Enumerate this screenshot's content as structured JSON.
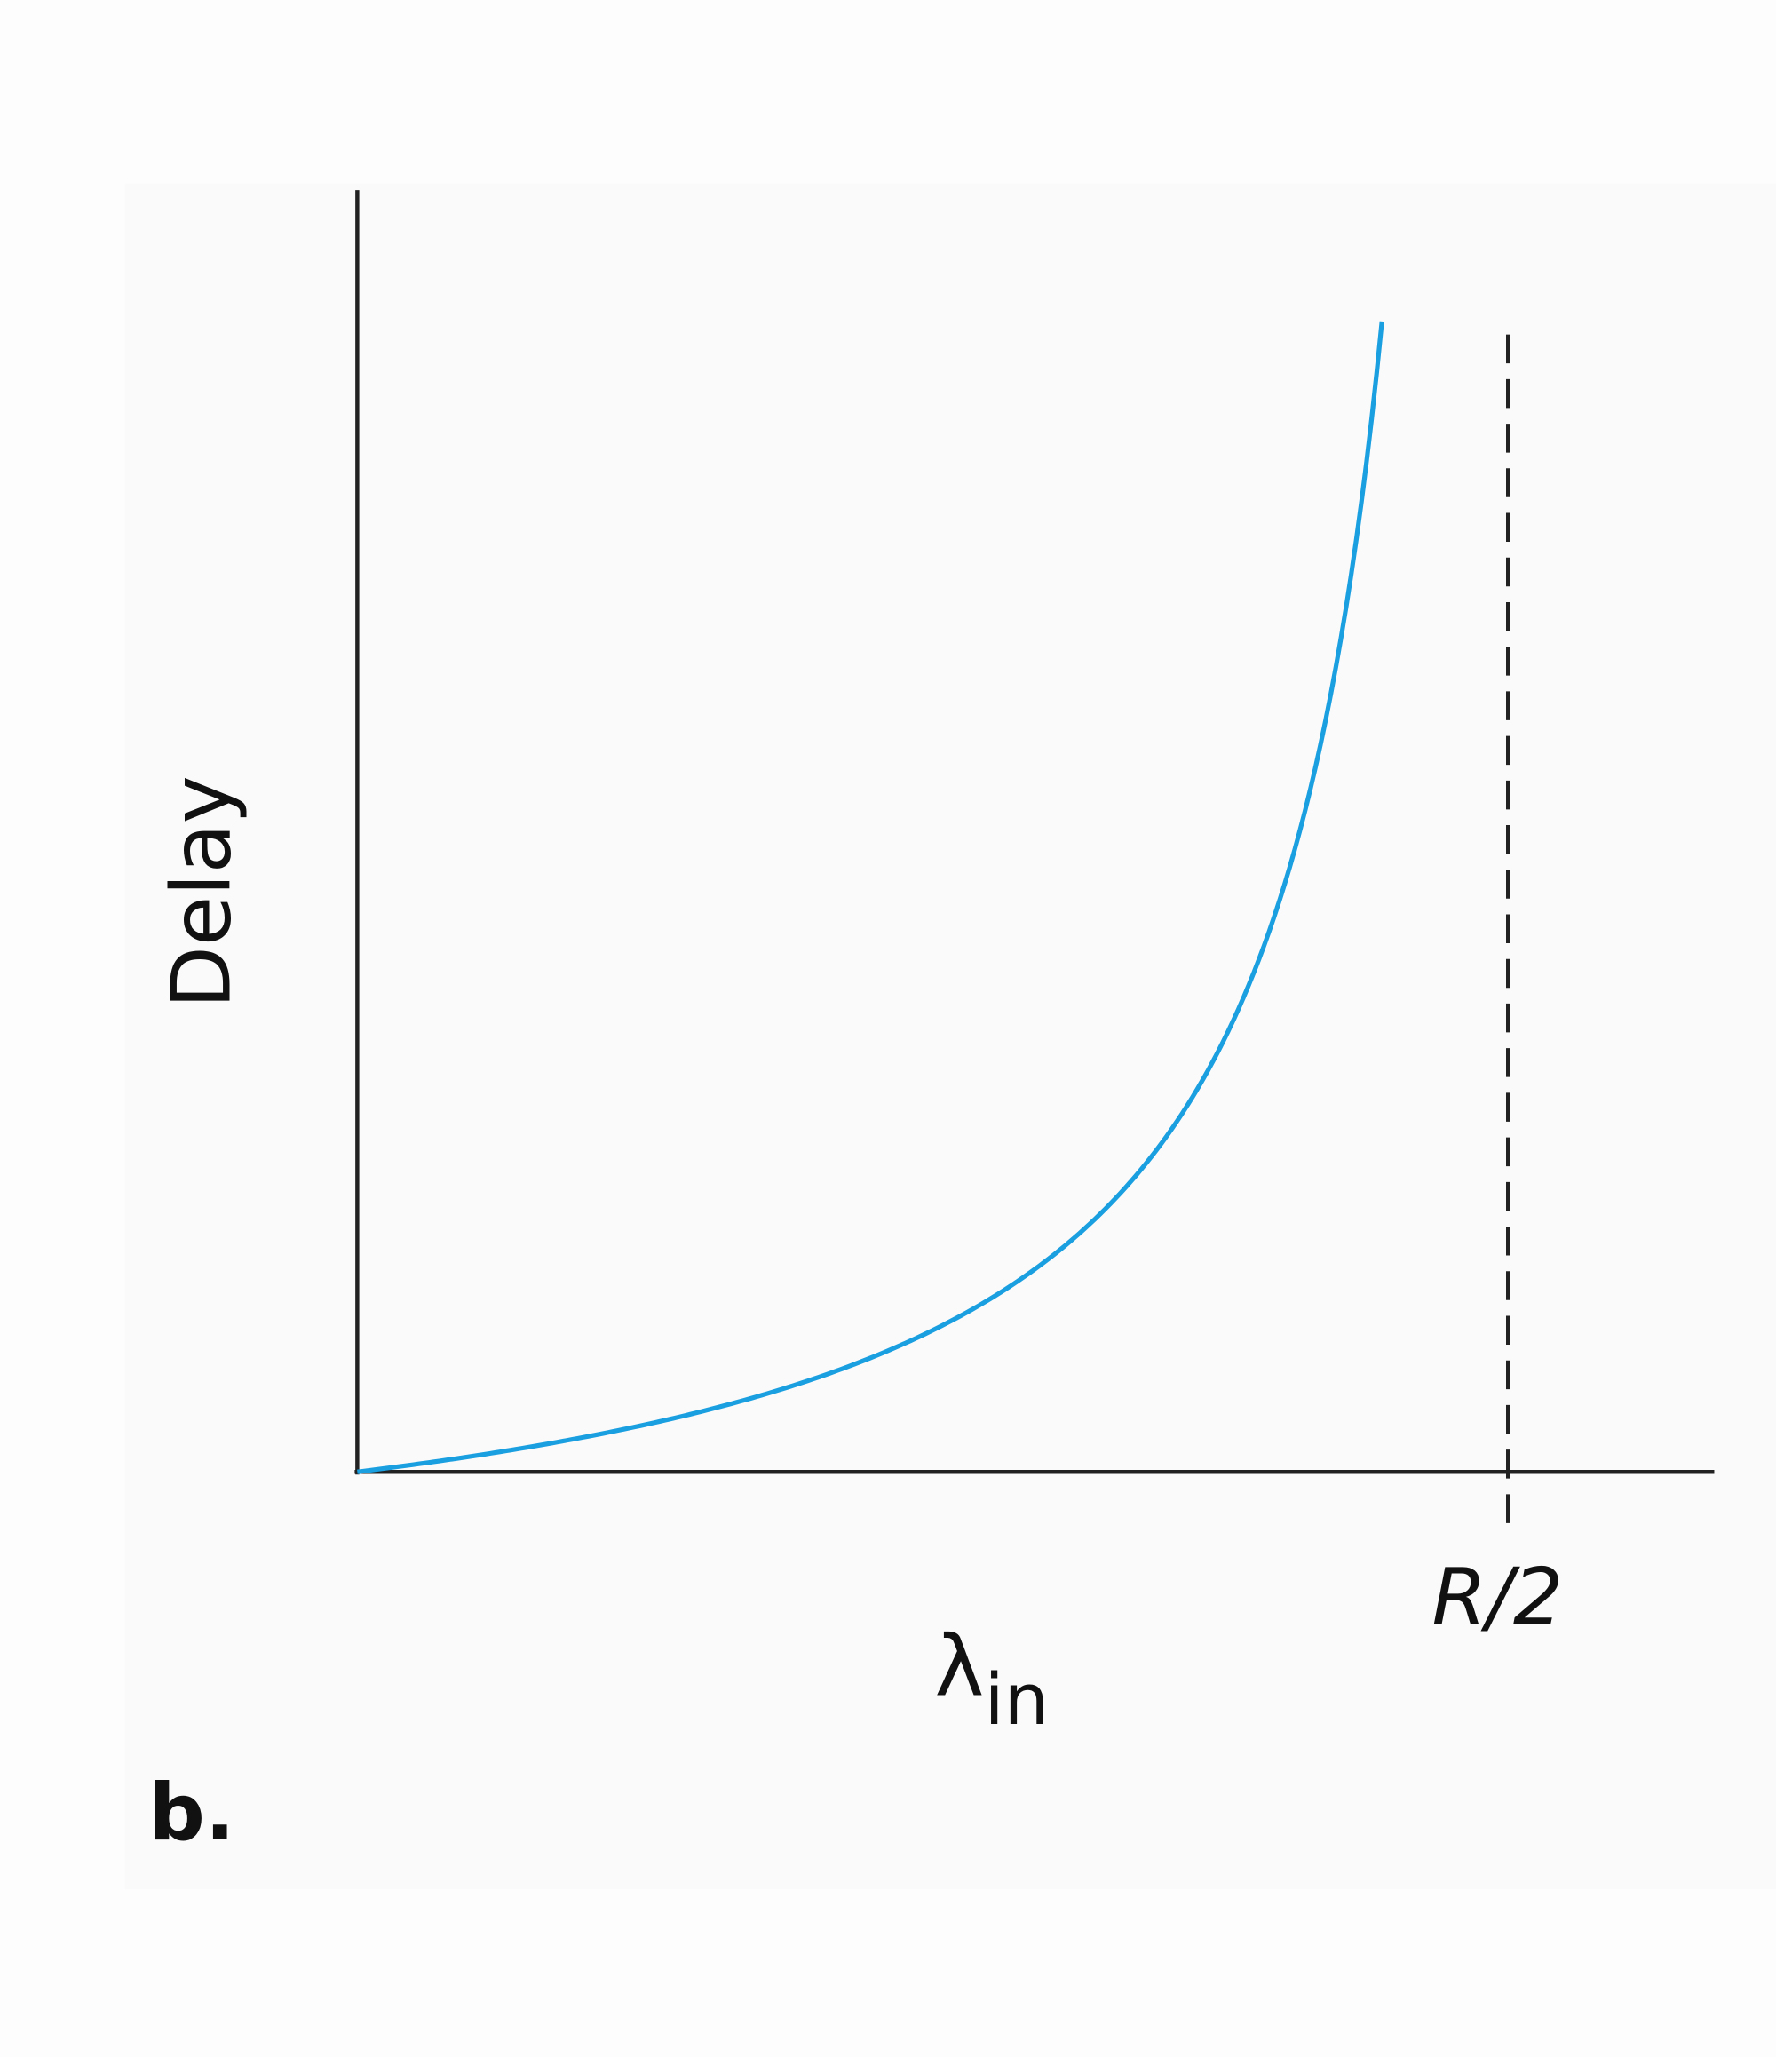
{
  "y_axis_label": "Delay",
  "x_axis_label": {
    "symbol": "λ",
    "subscript": "in"
  },
  "x_marker_label": "R/2",
  "panel_label": "b."
}
